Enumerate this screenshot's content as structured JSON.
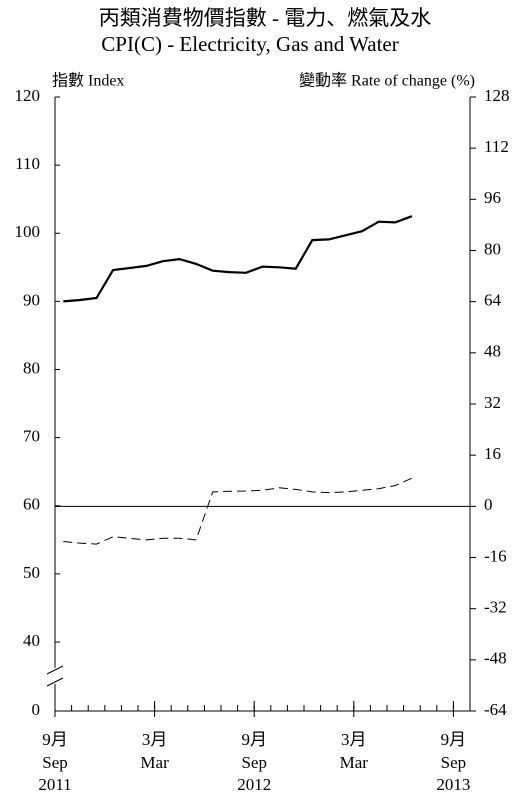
{
  "chart_data": {
    "type": "line",
    "title": "丙類消費物價指數  -  電力、燃氣及水",
    "subtitle": "CPI(C) - Electricity, Gas and Water",
    "y_label": "指數 Index",
    "y2_label": "變動率 Rate of change (%)",
    "x": [
      "2011-09",
      "2011-10",
      "2011-11",
      "2011-12",
      "2012-01",
      "2012-02",
      "2012-03",
      "2012-04",
      "2012-05",
      "2012-06",
      "2012-07",
      "2012-08",
      "2012-09",
      "2012-10",
      "2012-11",
      "2012-12",
      "2013-01",
      "2013-02",
      "2013-03",
      "2013-04",
      "2013-05",
      "2013-06"
    ],
    "xlim": [
      "2011-09",
      "2013-10"
    ],
    "xticks": [
      {
        "value": "2011-09",
        "zh": "9月",
        "en": "Sep",
        "year": "2011"
      },
      {
        "value": "2012-03",
        "zh": "3月",
        "en": "Mar"
      },
      {
        "value": "2012-09",
        "zh": "9月",
        "en": "Sep",
        "year": "2012"
      },
      {
        "value": "2013-03",
        "zh": "3月",
        "en": "Mar"
      },
      {
        "value": "2013-09",
        "zh": "9月",
        "en": "Sep",
        "year": "2013"
      }
    ],
    "series": [
      {
        "name": "指數 Index",
        "color": "#000000",
        "dashed": false,
        "values": [
          90.0,
          90.2,
          90.5,
          94.6,
          94.9,
          95.2,
          95.9,
          96.2,
          95.5,
          94.5,
          94.3,
          94.2,
          95.1,
          95.0,
          94.8,
          99.0,
          99.1,
          99.7,
          100.3,
          101.7,
          101.6,
          102.5
        ]
      },
      {
        "name": "變動率 Rate of change (%)",
        "color": "#000000",
        "dashed": true,
        "axis": "y2",
        "values": [
          -11.0,
          -11.5,
          -11.8,
          -9.5,
          -10.0,
          -10.5,
          -10.0,
          -10.0,
          -10.5,
          4.5,
          4.7,
          4.8,
          5.0,
          5.8,
          5.3,
          4.5,
          4.3,
          4.5,
          5.0,
          5.5,
          6.5,
          8.8
        ]
      }
    ],
    "ylim": [
      0,
      120
    ],
    "y_break": 40,
    "yticks": [
      0,
      40,
      50,
      60,
      70,
      80,
      90,
      100,
      110,
      120
    ],
    "y2lim": [
      -64,
      128
    ],
    "y2ticks": [
      -64,
      -48,
      -32,
      -16,
      0,
      16,
      32,
      48,
      64,
      80,
      96,
      112,
      128
    ]
  }
}
